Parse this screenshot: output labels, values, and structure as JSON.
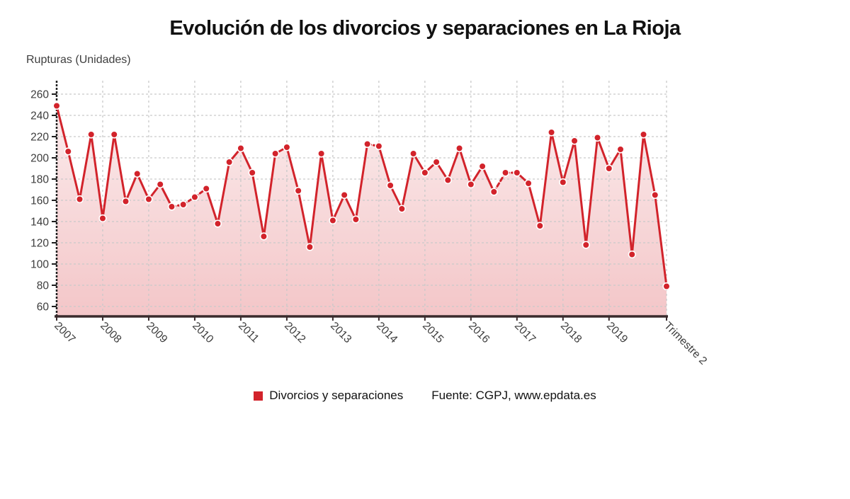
{
  "title": "Evolución de los divorcios y separaciones en La Rioja",
  "y_axis_unit_label": "Rupturas (Unidades)",
  "legend": {
    "series_label": "Divorcios y separaciones",
    "source_label": "Fuente: CGPJ, www.epdata.es"
  },
  "colors": {
    "line": "#d2232b",
    "point_fill": "#d2232b",
    "point_ring": "#ffffff",
    "area_top": "rgba(210,35,43,0.07)",
    "area_bottom": "rgba(210,35,43,0.26)",
    "grid": "#c9c9c9",
    "x_axis": "#3a2b2d",
    "y_axis": "#1f1f1f",
    "tick_text": "#3c3c3c"
  },
  "chart_data": {
    "type": "line",
    "title": "Evolución de los divorcios y separaciones en La Rioja",
    "ylabel": "Rupturas (Unidades)",
    "series_name": "Divorcios y separaciones",
    "source": "Fuente: CGPJ, www.epdata.es",
    "ylim": [
      50,
      272
    ],
    "y_ticks": [
      60,
      80,
      100,
      120,
      140,
      160,
      180,
      200,
      220,
      240,
      260
    ],
    "grid": true,
    "legend_position": "bottom",
    "periods": [
      "2007 T1",
      "2007 T2",
      "2007 T3",
      "2007 T4",
      "2008 T1",
      "2008 T2",
      "2008 T3",
      "2008 T4",
      "2009 T1",
      "2009 T2",
      "2009 T3",
      "2009 T4",
      "2010 T1",
      "2010 T2",
      "2010 T3",
      "2010 T4",
      "2011 T1",
      "2011 T2",
      "2011 T3",
      "2011 T4",
      "2012 T1",
      "2012 T2",
      "2012 T3",
      "2012 T4",
      "2013 T1",
      "2013 T2",
      "2013 T3",
      "2013 T4",
      "2014 T1",
      "2014 T2",
      "2014 T3",
      "2014 T4",
      "2015 T1",
      "2015 T2",
      "2015 T3",
      "2015 T4",
      "2016 T1",
      "2016 T2",
      "2016 T3",
      "2016 T4",
      "2017 T1",
      "2017 T2",
      "2017 T3",
      "2017 T4",
      "2018 T1",
      "2018 T2",
      "2018 T3",
      "2018 T4",
      "2019 T1",
      "2019 T2",
      "2019 T3",
      "2019 T4",
      "2020 T1",
      "2020 T2"
    ],
    "values": [
      249,
      206,
      161,
      222,
      143,
      222,
      159,
      185,
      161,
      175,
      154,
      156,
      163,
      171,
      138,
      196,
      209,
      186,
      126,
      204,
      210,
      169,
      116,
      204,
      141,
      165,
      142,
      213,
      211,
      174,
      152,
      204,
      186,
      196,
      179,
      209,
      175,
      192,
      168,
      186,
      186,
      176,
      136,
      224,
      177,
      216,
      118,
      219,
      190,
      208,
      109,
      222,
      165,
      79
    ],
    "dashed_segment_start_indices": [
      10,
      11,
      12,
      27,
      38,
      39
    ],
    "x_tick_labels": [
      {
        "label": "2007",
        "point_index": 0
      },
      {
        "label": "2008",
        "point_index": 4
      },
      {
        "label": "2009",
        "point_index": 8
      },
      {
        "label": "2010",
        "point_index": 12
      },
      {
        "label": "2011",
        "point_index": 16
      },
      {
        "label": "2012",
        "point_index": 20
      },
      {
        "label": "2013",
        "point_index": 24
      },
      {
        "label": "2014",
        "point_index": 28
      },
      {
        "label": "2015",
        "point_index": 32
      },
      {
        "label": "2016",
        "point_index": 36
      },
      {
        "label": "2017",
        "point_index": 40
      },
      {
        "label": "2018",
        "point_index": 44
      },
      {
        "label": "2019",
        "point_index": 48
      },
      {
        "label": "Trimestre 2",
        "point_index": 53
      }
    ]
  }
}
